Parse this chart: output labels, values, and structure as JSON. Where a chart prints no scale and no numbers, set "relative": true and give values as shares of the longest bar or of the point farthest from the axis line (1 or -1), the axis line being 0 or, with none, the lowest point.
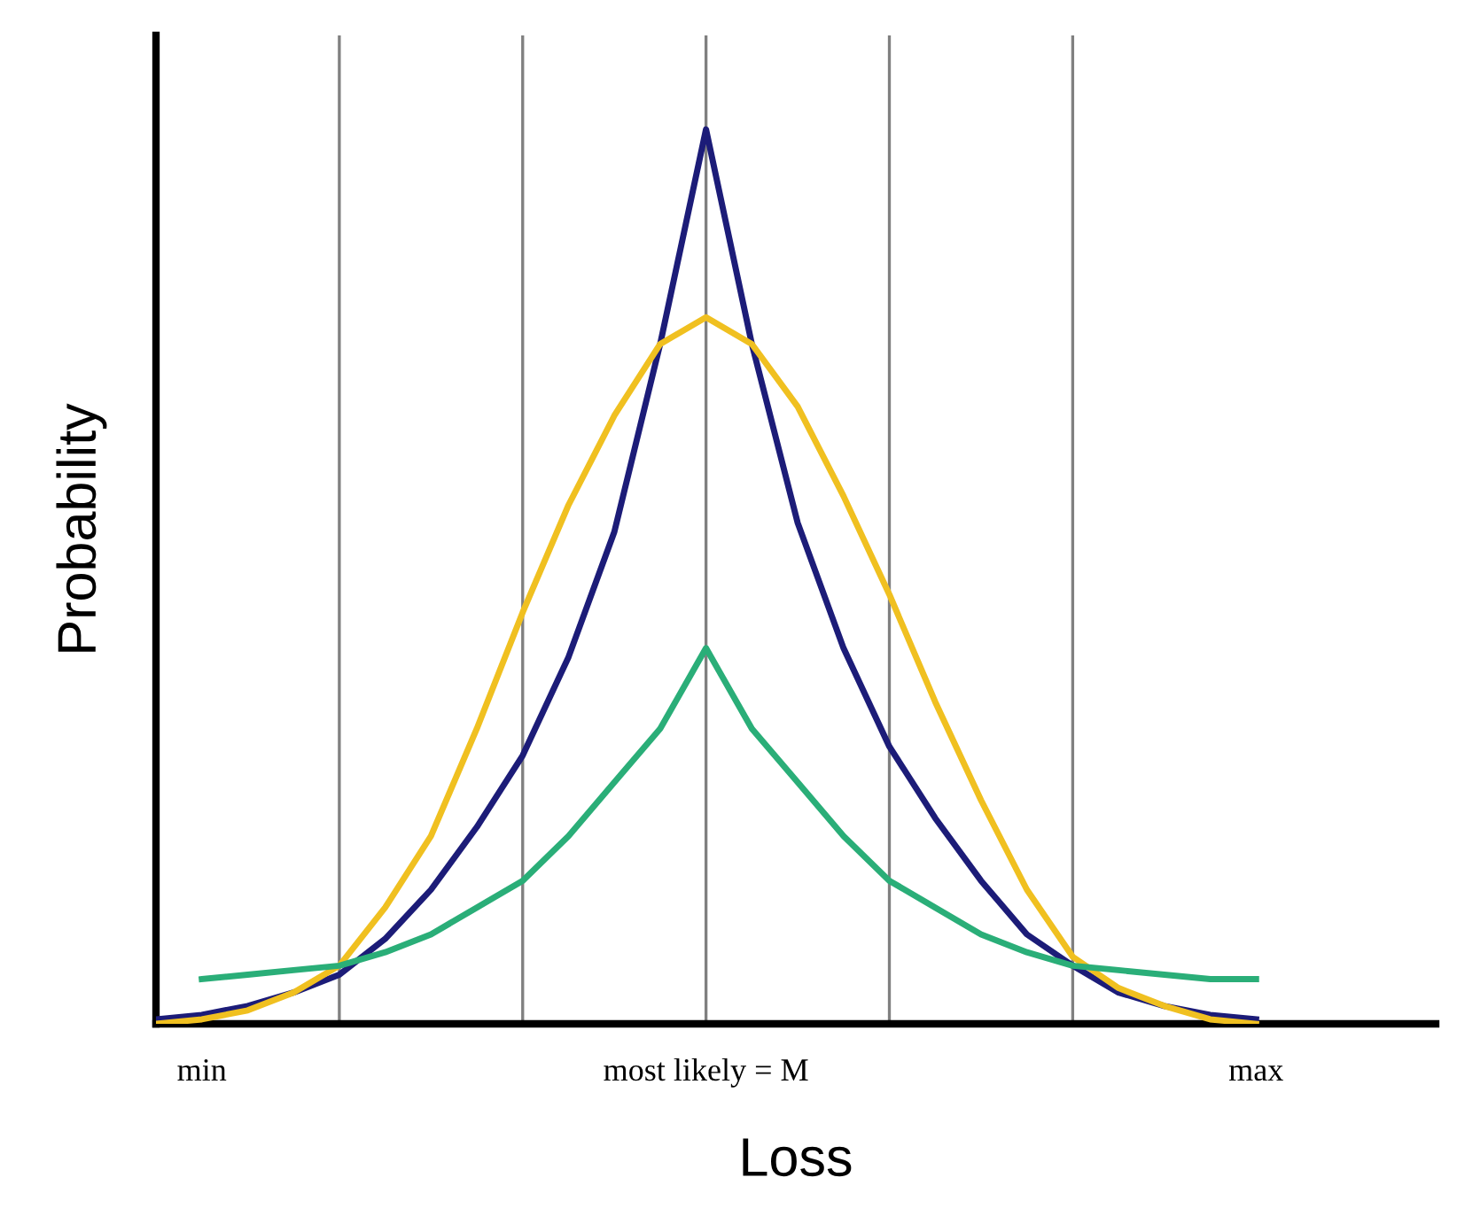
{
  "chart_data": {
    "type": "line",
    "relative": true,
    "xlabel": "Loss",
    "ylabel": "Probability",
    "categories": [
      null,
      "min",
      null,
      null,
      null,
      null,
      null,
      null,
      null,
      null,
      null,
      null,
      "most likely = M",
      null,
      null,
      null,
      null,
      null,
      null,
      null,
      null,
      null,
      null,
      null,
      "max"
    ],
    "series": [
      {
        "color": "#1c1c78",
        "values": [
          0.005,
          0.01,
          0.02,
          0.035,
          0.055,
          0.095,
          0.15,
          0.22,
          0.3,
          0.41,
          0.55,
          0.76,
          1.0,
          0.76,
          0.56,
          0.42,
          0.31,
          0.23,
          0.16,
          0.1,
          0.065,
          0.035,
          0.02,
          0.01,
          0.005
        ]
      },
      {
        "color": "#f0c020",
        "values": [
          0.0,
          0.005,
          0.015,
          0.035,
          0.065,
          0.13,
          0.21,
          0.33,
          0.46,
          0.58,
          0.68,
          0.76,
          0.79,
          0.76,
          0.69,
          0.59,
          0.48,
          0.36,
          0.25,
          0.15,
          0.075,
          0.04,
          0.02,
          0.005,
          0.0
        ]
      },
      {
        "color": "#2aae78",
        "values": [
          null,
          0.05,
          0.055,
          0.06,
          0.065,
          0.08,
          0.1,
          0.13,
          0.16,
          0.21,
          0.27,
          0.33,
          0.42,
          0.33,
          0.27,
          0.21,
          0.16,
          0.13,
          0.1,
          0.08,
          0.065,
          0.06,
          0.055,
          0.05,
          0.05
        ]
      }
    ],
    "grid": "x",
    "legend": false
  }
}
